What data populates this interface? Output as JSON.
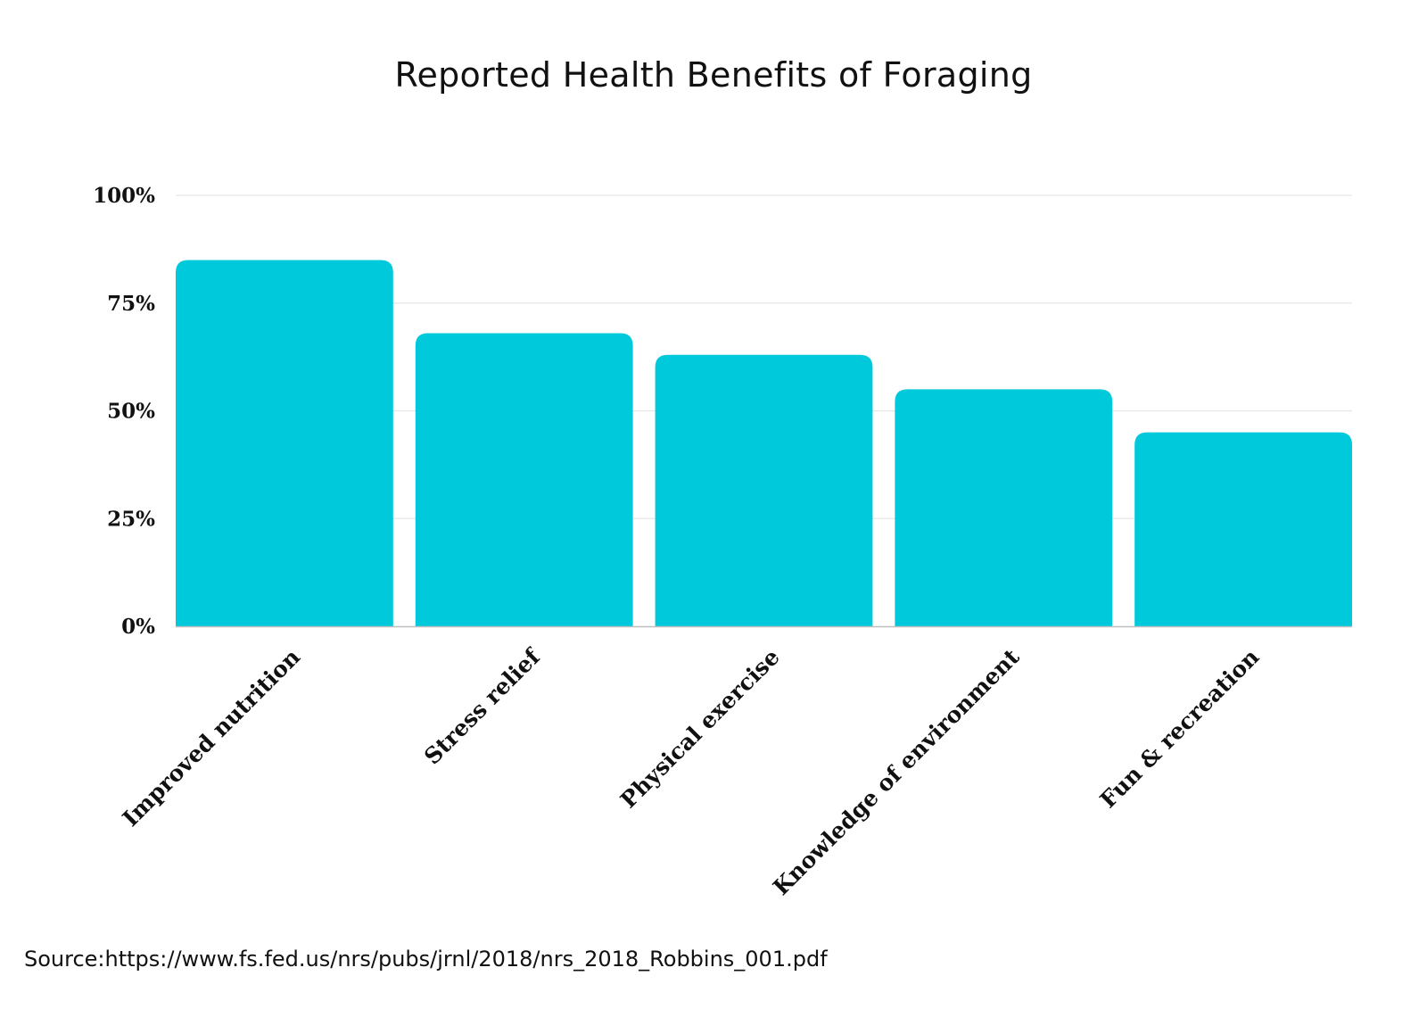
{
  "colors": {
    "bar": "#00C9DB",
    "grid": "#e6e6e6",
    "axis": "#bfbfbf",
    "text": "#111111"
  },
  "chart_data": {
    "type": "bar",
    "title": "Reported Health Benefits of Foraging",
    "categories": [
      "Improved nutrition",
      "Stress relief",
      "Physical exercise",
      "Knowledge of environment",
      "Fun & recreation"
    ],
    "values": [
      85,
      68,
      63,
      55,
      45
    ],
    "unit": "%",
    "ylim": [
      0,
      100
    ],
    "yticks": [
      0,
      25,
      50,
      75,
      100
    ],
    "ytick_labels": [
      "0%",
      "25%",
      "50%",
      "75%",
      "100%"
    ],
    "grid": true,
    "legend": "none"
  },
  "source": "Source:https://www.fs.fed.us/nrs/pubs/jrnl/2018/nrs_2018_Robbins_001.pdf"
}
